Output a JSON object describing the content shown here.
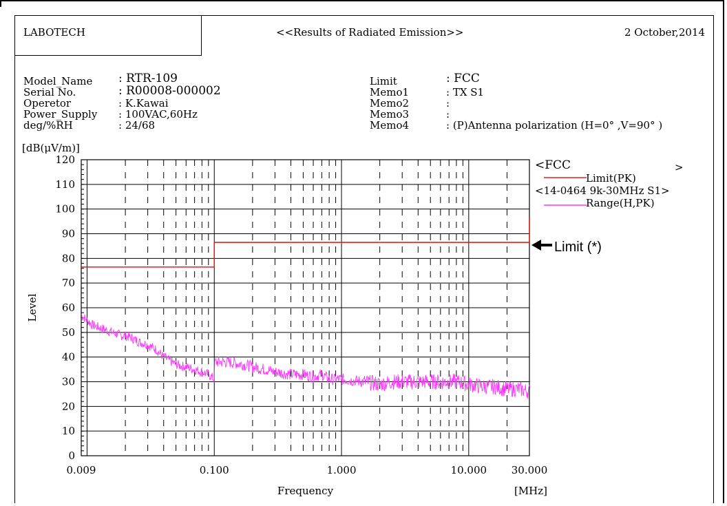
{
  "header": {
    "company": "LABOTECH",
    "title": "<<Results of Radiated Emission>>",
    "date": "2 October,2014"
  },
  "info_left": [
    {
      "label": "Model_Name",
      "value": ": RTR-109"
    },
    {
      "label": "Serial No.",
      "value": ": R00008-000002"
    },
    {
      "label": "Operetor",
      "value": ": K.Kawai"
    },
    {
      "label": "Power_Supply",
      "value": ": 100VAC,60Hz"
    },
    {
      "label": "deg/%RH",
      "value": ": 24/68"
    }
  ],
  "info_right": [
    {
      "label": "Limit",
      "value": ": FCC"
    },
    {
      "label": "Memo1",
      "value": ": TX S1"
    },
    {
      "label": "Memo2",
      "value": ":"
    },
    {
      "label": "Memo3",
      "value": ":"
    },
    {
      "label": "Memo4",
      "value": ": (P)Antenna polarization (H=0°  ,V=90°  )"
    }
  ],
  "legend": {
    "group1_left": "<FCC",
    "group1_right": ">",
    "group1_entry": "Limit(PK)",
    "group2_header": "<14-0464 9k-30MHz S1>",
    "group2_entry": "Range(H,PK)"
  },
  "annotation": "Limit (*)",
  "colors": {
    "limit": "#e0201c",
    "measured": "#ff33ff",
    "grid": "#000000"
  },
  "chart_data": {
    "type": "line",
    "unit_label": "[dB(μV/m)]",
    "ylabel": "Level",
    "xlabel": "Frequency",
    "xunit": "[MHz]",
    "xscale": "log",
    "xlim": [
      0.009,
      30.0
    ],
    "ylim": [
      0,
      120
    ],
    "y_ticks": [
      0,
      10,
      20,
      30,
      40,
      50,
      60,
      70,
      80,
      90,
      100,
      110,
      120
    ],
    "x_tick_values": [
      0.009,
      0.1,
      1.0,
      10.0,
      30.0
    ],
    "x_tick_labels": [
      "0.009",
      "0.100",
      "1.000",
      "10.000",
      "30.000"
    ],
    "grid": true,
    "legend_position": "top-right",
    "series": [
      {
        "name": "Limit(PK)",
        "x": [
          0.009,
          0.1,
          0.1,
          30.0,
          30.0
        ],
        "y": [
          76.5,
          76.5,
          86.5,
          86.5,
          96.5
        ]
      },
      {
        "name": "Range(H,PK)",
        "x": [
          0.009,
          0.011,
          0.014,
          0.018,
          0.022,
          0.026,
          0.03,
          0.035,
          0.04,
          0.05,
          0.06,
          0.07,
          0.08,
          0.09,
          0.1,
          0.101,
          0.13,
          0.17,
          0.2,
          0.25,
          0.3,
          0.4,
          0.5,
          0.6,
          0.7,
          0.8,
          0.9,
          1.0,
          1.5,
          2.0,
          2.5,
          3.0,
          4.0,
          5.0,
          6.0,
          7.0,
          8.0,
          10.0,
          13.0,
          16.0,
          20.0,
          25.0,
          30.0
        ],
        "y": [
          57,
          53,
          51,
          49,
          48,
          46,
          45,
          43,
          40,
          37,
          36,
          35,
          34,
          33,
          31,
          38,
          38,
          37,
          36,
          35,
          34,
          33,
          33,
          32,
          33,
          31,
          31,
          31,
          30,
          29,
          30,
          30,
          30,
          30,
          30,
          30,
          30,
          29,
          28,
          28,
          27,
          27,
          26
        ]
      }
    ]
  }
}
